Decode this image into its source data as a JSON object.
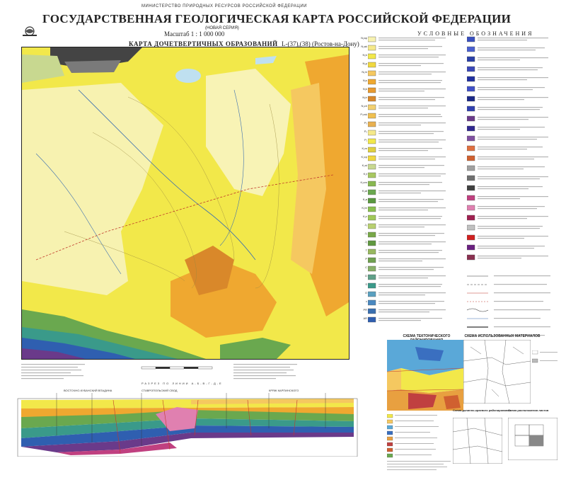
{
  "header": {
    "ministry": "МИНИСТЕРСТВО ПРИРОДНЫХ РЕСУРСОВ РОССИЙСКОЙ ФЕДЕРАЦИИ",
    "title": "ГОСУДАРСТВЕННАЯ ГЕОЛОГИЧЕСКАЯ КАРТА РОССИЙСКОЙ ФЕДЕРАЦИИ",
    "series": "(НОВАЯ СЕРИЯ)",
    "scale": "Масштаб 1 : 1 000 000",
    "nomenclature": "L-(37),(38) (Ростов-на-Дону)",
    "subtitle": "КАРТА ДОЧЕТВЕРТИЧНЫХ ОБРАЗОВАНИЙ"
  },
  "legend": {
    "title": "УСЛОВНЫЕ ОБОЗНАЧЕНИЯ",
    "left_codes": [
      "N₂ap",
      "N₂ak",
      "N₂k",
      "N₁p",
      "N₁m",
      "N₁s",
      "N₁k",
      "N₁tr",
      "N₁ch",
      "P₃mk",
      "P₃",
      "P₂",
      "P₁",
      "K₂m",
      "K₂cp",
      "K₂st",
      "K₂t",
      "K₂cm",
      "K₁al",
      "K₁a",
      "K₁br",
      "K₁v",
      "J₃",
      "J₂",
      "J₁",
      "T",
      "P",
      "C",
      "D",
      "S",
      "O",
      "ε",
      "PR",
      "AR"
    ]
  },
  "map": {
    "colors": {
      "pale_yellow": "#f6f0a0",
      "yellow": "#f2e84a",
      "orange": "#efa830",
      "light_orange": "#f5c860",
      "green": "#6aa84f",
      "teal": "#3a9a8a",
      "blue": "#2f5fb0",
      "purple": "#6a3a8a",
      "water": "#bfe0f0",
      "dark": "#444444"
    }
  },
  "section": {
    "title": "РАЗРЕЗ ПО ЛИНИИ А-Б-В-Г-Д-Е",
    "labels": [
      "ВОСТОЧНО-КУБАНСКИЙ ВПАДИНА",
      "СТАВРОПОЛЬСКИЙ СВОД",
      "КРЯЖ КАРПИНСКОГО"
    ]
  },
  "insets": {
    "tectonic": "СХЕМА ТЕКТОНИЧЕСКОГО РАЙОНИРОВАНИЯ",
    "materials": "СХЕМА ИСПОЛЬЗОВАННЫХ МАТЕРИАЛОВ",
    "correlation": "Схема расположения листов",
    "structural": "Схема долинно-краевого районирования"
  }
}
